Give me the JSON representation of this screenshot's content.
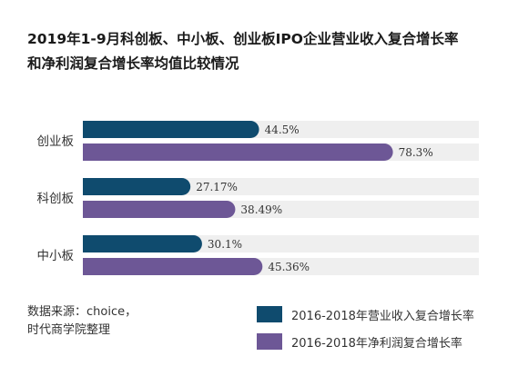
{
  "title_line1": "2019年1-9月科创板、中小板、创业板IPO企业营业收入复合增长率",
  "title_line2": "和净利润复合增长率均值比较情况",
  "source_line1": "数据来源：choice，",
  "source_line2": "时代商学院整理",
  "colors": {
    "revenue": "#0f4b6e",
    "profit": "#6d5796",
    "track": "#efefef"
  },
  "chart_data": {
    "type": "bar",
    "orientation": "horizontal",
    "title": "2019年1-9月科创板、中小板、创业板IPO企业营业收入复合增长率和净利润复合增长率均值比较情况",
    "categories": [
      "创业板",
      "科创板",
      "中小板"
    ],
    "series": [
      {
        "name": "2016-2018年营业收入复合增长率",
        "values": [
          44.5,
          27.17,
          30.1
        ],
        "labels": [
          "44.5%",
          "27.17%",
          "30.1%"
        ]
      },
      {
        "name": "2016-2018年净利润复合增长率",
        "values": [
          78.3,
          38.49,
          45.36
        ],
        "labels": [
          "78.3%",
          "38.49%",
          "45.36%"
        ]
      }
    ],
    "xlim": [
      0,
      100
    ],
    "grid": false,
    "legend_position": "bottom-right"
  }
}
